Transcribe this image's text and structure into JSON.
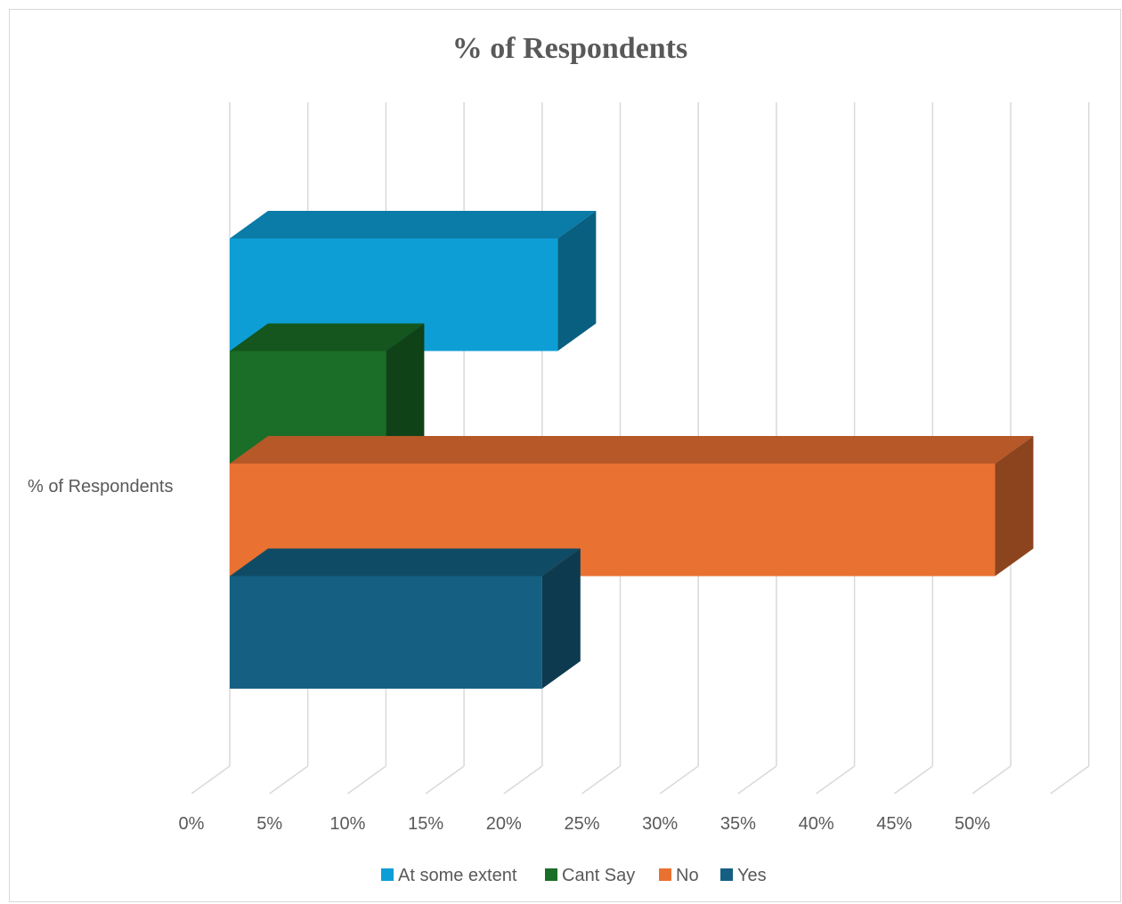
{
  "chart_data": {
    "type": "bar",
    "orientation": "horizontal",
    "style": "3d-clustered",
    "title": "% of Respondents",
    "categories": [
      "% of Respondents"
    ],
    "xlabel": "",
    "ylabel": "",
    "xlim": [
      0,
      50
    ],
    "x_ticks": [
      "0%",
      "5%",
      "10%",
      "15%",
      "20%",
      "25%",
      "30%",
      "35%",
      "40%",
      "45%",
      "50%"
    ],
    "grid": true,
    "legend_position": "bottom",
    "series": [
      {
        "name": "At some extent",
        "values": [
          21
        ],
        "color": "#0E9ED6"
      },
      {
        "name": "Cant Say",
        "values": [
          10
        ],
        "color": "#1A6E27"
      },
      {
        "name": "No",
        "values": [
          49
        ],
        "color": "#E97132"
      },
      {
        "name": "Yes",
        "values": [
          20
        ],
        "color": "#156082"
      }
    ]
  }
}
